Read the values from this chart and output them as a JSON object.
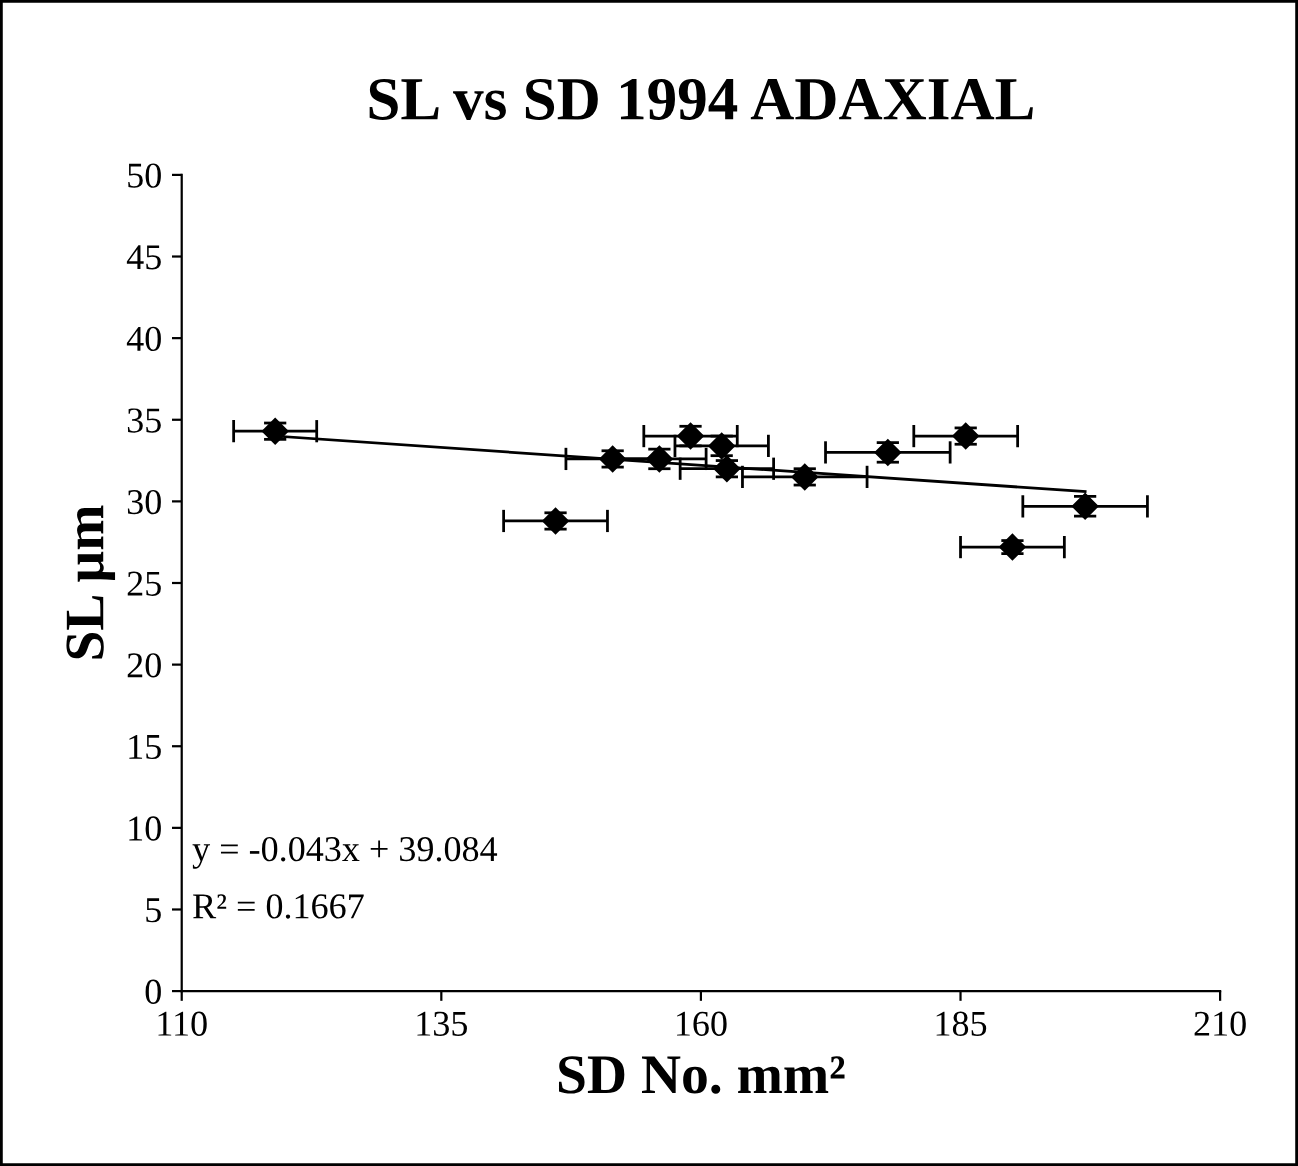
{
  "chart_data": {
    "type": "scatter",
    "title": "SL vs SD 1994 ADAXIAL",
    "xlabel": "SD No. mm²",
    "ylabel": "SL µm",
    "xlim": [
      110,
      210
    ],
    "xticks": [
      110,
      135,
      160,
      185,
      210
    ],
    "ylim": [
      0,
      50
    ],
    "yticks": [
      0,
      5,
      10,
      15,
      20,
      25,
      30,
      35,
      40,
      45,
      50
    ],
    "grid": false,
    "legend": false,
    "marker": "diamond",
    "series": [
      {
        "color": "#000000",
        "x": [
          119,
          146,
          151.5,
          156,
          159,
          162,
          162.5,
          170,
          178,
          185.5,
          190,
          197
        ],
        "values": [
          34.3,
          28.8,
          32.6,
          32.6,
          34,
          33.4,
          32,
          31.5,
          33,
          34,
          27.2,
          29.7
        ],
        "xerrors": [
          4,
          5,
          4.5,
          4.5,
          4.5,
          4.5,
          4.5,
          6,
          6,
          5,
          5,
          6
        ],
        "errors": [
          0.5,
          0.5,
          0.5,
          0.6,
          0.6,
          0.6,
          0.5,
          0.5,
          0.6,
          0.5,
          0.4,
          0.6
        ]
      },
      {
        "type": "line",
        "color": "#000000",
        "marker": "none",
        "line_style": "solid",
        "x": [
          119,
          197
        ],
        "values": [
          34.0,
          30.6
        ]
      }
    ],
    "annotations": [
      {
        "text": "y = -0.043x + 39.084"
      },
      {
        "text": "R² = 0.1667"
      }
    ]
  }
}
